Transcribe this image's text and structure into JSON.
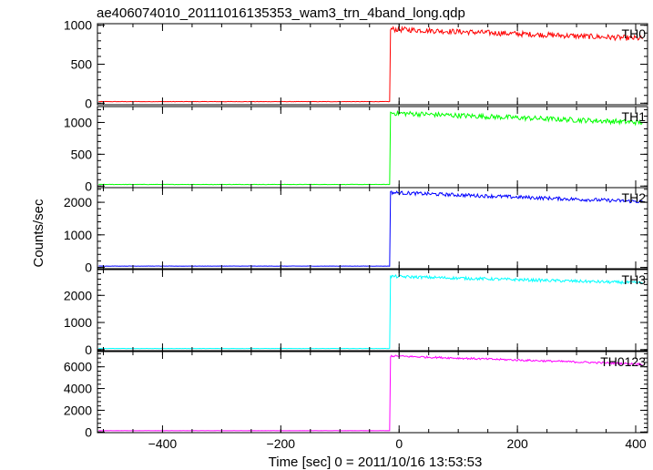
{
  "chart_data": {
    "type": "line",
    "title": "ae406074010_20111016135353_wam3_trn_4band_long.qdp",
    "xlabel": "Time [sec] 0 = 2011/10/16 13:53:53",
    "ylabel": "Counts/sec",
    "xlim": [
      -510,
      420
    ],
    "x_ticks": [
      -400,
      -200,
      0,
      200,
      400
    ],
    "x_tick_labels": [
      "−400",
      "−200",
      "0",
      "200",
      "400"
    ],
    "grid": false,
    "onset_x": -15,
    "panels": [
      {
        "name": "TH0",
        "color": "#ff0000",
        "ylim": [
          -20,
          1020
        ],
        "y_ticks": [
          0,
          500,
          1000
        ],
        "y_tick_labels": [
          "0",
          "500",
          "1000"
        ],
        "pre_level": 20,
        "peak_level": 950,
        "end_level": 830,
        "noise": 35
      },
      {
        "name": "TH1",
        "color": "#00ff00",
        "ylim": [
          -25,
          1250
        ],
        "y_ticks": [
          0,
          500,
          1000
        ],
        "y_tick_labels": [
          "0",
          "500",
          "1000"
        ],
        "pre_level": 25,
        "peak_level": 1150,
        "end_level": 1000,
        "noise": 40
      },
      {
        "name": "TH2",
        "color": "#0000ff",
        "ylim": [
          -40,
          2450
        ],
        "y_ticks": [
          0,
          1000,
          2000
        ],
        "y_tick_labels": [
          "0",
          "1000",
          "2000"
        ],
        "pre_level": 40,
        "peak_level": 2300,
        "end_level": 2020,
        "noise": 55
      },
      {
        "name": "TH3",
        "color": "#00ffff",
        "ylim": [
          -40,
          2950
        ],
        "y_ticks": [
          0,
          1000,
          2000
        ],
        "y_tick_labels": [
          "0",
          "1000",
          "2000"
        ],
        "pre_level": 40,
        "peak_level": 2700,
        "end_level": 2460,
        "noise": 55
      },
      {
        "name": "TH0123",
        "color": "#ff00ff",
        "ylim": [
          -60,
          7400
        ],
        "y_ticks": [
          0,
          2000,
          4000,
          6000
        ],
        "y_tick_labels": [
          "0",
          "2000",
          "4000",
          "6000"
        ],
        "pre_level": 120,
        "peak_level": 7000,
        "end_level": 6250,
        "noise": 90
      }
    ]
  }
}
